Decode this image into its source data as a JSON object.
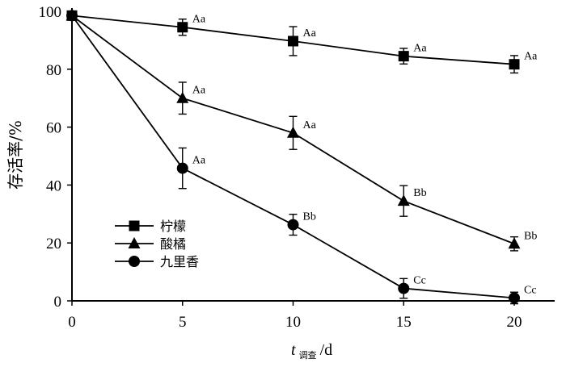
{
  "chart_data": {
    "type": "line",
    "x": [
      0,
      5,
      10,
      15,
      20
    ],
    "xlim": [
      0,
      22
    ],
    "ylim": [
      0,
      100
    ],
    "xticks": [
      "0",
      "5",
      "10",
      "15",
      "20"
    ],
    "yticks": [
      "0",
      "20",
      "40",
      "60",
      "80",
      "100"
    ],
    "ylabel": "存活率/%",
    "xlabel": {
      "var": "t",
      "sub": "调查",
      "unit": "/d"
    },
    "legend_position": "lower-left",
    "series": [
      {
        "name": "柠檬",
        "marker": "square",
        "values": [
          98.5,
          94.5,
          89.7,
          84.5,
          81.7
        ],
        "errors": [
          1.5,
          2.8,
          5.0,
          2.7,
          3.0
        ],
        "labels": [
          "",
          "Aa",
          "Aa",
          "Aa",
          "Aa"
        ]
      },
      {
        "name": "酸橘",
        "marker": "triangle",
        "values": [
          98.5,
          70.0,
          58.0,
          34.5,
          19.7
        ],
        "errors": [
          1.5,
          5.5,
          5.7,
          5.3,
          2.4
        ],
        "labels": [
          "",
          "Aa",
          "Aa",
          "Bb",
          "Bb"
        ]
      },
      {
        "name": "九里香",
        "marker": "circle",
        "values": [
          98.5,
          45.8,
          26.3,
          4.3,
          1.0
        ],
        "errors": [
          1.5,
          7.0,
          3.6,
          3.4,
          2.0
        ],
        "labels": [
          "",
          "Aa",
          "Bb",
          "Cc",
          "Cc"
        ]
      }
    ]
  }
}
